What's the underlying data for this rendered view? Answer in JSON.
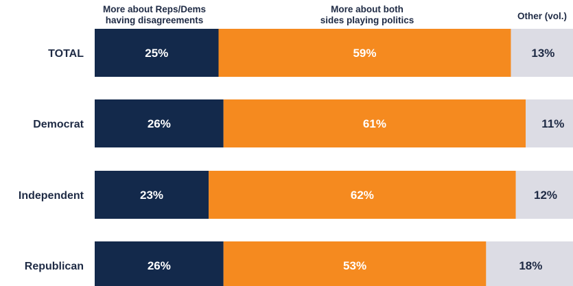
{
  "chart_data": {
    "type": "bar",
    "orientation": "horizontal",
    "stacked": true,
    "categories": [
      "TOTAL",
      "Democrat",
      "Independent",
      "Republican"
    ],
    "series": [
      {
        "name": "More about Reps/Dems having disagreements",
        "values": [
          25,
          26,
          23,
          26
        ],
        "color": "#13294b"
      },
      {
        "name": "More about both sides playing politics",
        "values": [
          59,
          61,
          62,
          53
        ],
        "color": "#f58a1f"
      },
      {
        "name": "Other (vol.)",
        "values": [
          13,
          11,
          12,
          18
        ],
        "color": "#dcdce4"
      }
    ],
    "value_suffix": "%",
    "headers": {
      "col1_line1": "More about Reps/Dems",
      "col1_line2": "having disagreements",
      "col2_line1": "More about both",
      "col2_line2": "sides playing politics",
      "col3": "Other (vol.)"
    },
    "label_colors": {
      "dark_bg": "#ffffff",
      "light_bg": "#1e2a44",
      "category": "#1e2a44"
    }
  }
}
